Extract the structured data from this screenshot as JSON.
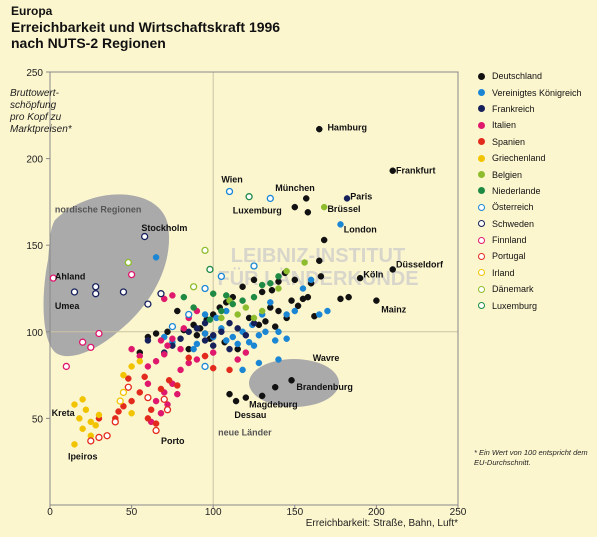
{
  "header": {
    "region": "Europa",
    "title_line1": "Erreichbarkeit und Wirtschaftskraft 1996",
    "title_line2": "nach NUTS-2 Regionen"
  },
  "watermark": "LEIBNIZ-INSTITUT FÜR LÄNDERKUNDE",
  "footnote": "* Ein Wert von 100 entspricht dem EU-Durchschnitt.",
  "colors": {
    "background": "#fcf6cf",
    "grid": "#c9c3a2",
    "blob": "#aaaaaa"
  },
  "chart_data": {
    "type": "scatter",
    "title": "Erreichbarkeit und Wirtschaftskraft 1996 nach NUTS-2 Regionen",
    "xlabel": "Erreichbarkeit: Straße, Bahn, Luft*",
    "ylabel_lines": [
      "Bruttowert-",
      "schöpfung",
      "pro Kopf zu",
      "Marktpreisen*"
    ],
    "xlim": [
      0,
      250
    ],
    "ylim": [
      0,
      250
    ],
    "xticks": [
      0,
      50,
      100,
      150,
      200,
      250
    ],
    "yticks": [
      50,
      100,
      150,
      200,
      250
    ],
    "grid": false,
    "reference_lines": {
      "x": 100,
      "y": 100
    },
    "legend_position": "right",
    "series": [
      {
        "name": "Deutschland",
        "color": "#111111",
        "filled": true,
        "points": [
          [
            165,
            217
          ],
          [
            210,
            193
          ],
          [
            157,
            177
          ],
          [
            150,
            172
          ],
          [
            158,
            169
          ],
          [
            168,
            153
          ],
          [
            165,
            141
          ],
          [
            190,
            131
          ],
          [
            210,
            136
          ],
          [
            200,
            118
          ],
          [
            183,
            120
          ],
          [
            178,
            119
          ],
          [
            166,
            132
          ],
          [
            160,
            128
          ],
          [
            150,
            130
          ],
          [
            144,
            134
          ],
          [
            140,
            129
          ],
          [
            136,
            124
          ],
          [
            130,
            123
          ],
          [
            125,
            130
          ],
          [
            118,
            126
          ],
          [
            112,
            120
          ],
          [
            108,
            117
          ],
          [
            104,
            114
          ],
          [
            100,
            110
          ],
          [
            96,
            107
          ],
          [
            88,
            104
          ],
          [
            82,
            101
          ],
          [
            72,
            100
          ],
          [
            65,
            99
          ],
          [
            60,
            97
          ],
          [
            55,
            88
          ],
          [
            78,
            112
          ],
          [
            85,
            90
          ],
          [
            90,
            98
          ],
          [
            135,
            114
          ],
          [
            140,
            112
          ],
          [
            132,
            106
          ],
          [
            128,
            104
          ],
          [
            122,
            108
          ],
          [
            148,
            118
          ],
          [
            152,
            115
          ],
          [
            145,
            108
          ],
          [
            138,
            103
          ],
          [
            155,
            119
          ],
          [
            162,
            109
          ],
          [
            158,
            120
          ],
          [
            148,
            72
          ],
          [
            138,
            68
          ],
          [
            130,
            63
          ],
          [
            120,
            62
          ],
          [
            114,
            60
          ],
          [
            110,
            64
          ],
          [
            115,
            90
          ],
          [
            107,
            94
          ],
          [
            95,
            99
          ],
          [
            92,
            102
          ],
          [
            98,
            96
          ]
        ]
      },
      {
        "name": "Vereinigtes Königreich",
        "color": "#1a86d4",
        "filled": true,
        "points": [
          [
            178,
            162
          ],
          [
            65,
            143
          ],
          [
            95,
            99
          ],
          [
            100,
            97
          ],
          [
            105,
            102
          ],
          [
            108,
            95
          ],
          [
            112,
            97
          ],
          [
            115,
            93
          ],
          [
            118,
            100
          ],
          [
            122,
            94
          ],
          [
            125,
            92
          ],
          [
            128,
            98
          ],
          [
            130,
            110
          ],
          [
            135,
            117
          ],
          [
            138,
            95
          ],
          [
            140,
            100
          ],
          [
            145,
            96
          ],
          [
            150,
            112
          ],
          [
            155,
            125
          ],
          [
            160,
            130
          ],
          [
            165,
            110
          ],
          [
            170,
            112
          ],
          [
            140,
            84
          ],
          [
            128,
            82
          ],
          [
            118,
            78
          ],
          [
            88,
            90
          ],
          [
            90,
            93
          ],
          [
            75,
            94
          ],
          [
            70,
            97
          ],
          [
            102,
            108
          ],
          [
            95,
            110
          ],
          [
            108,
            112
          ],
          [
            145,
            110
          ],
          [
            132,
            100
          ],
          [
            124,
            104
          ]
        ]
      },
      {
        "name": "Frankreich",
        "color": "#16205a",
        "filled": true,
        "points": [
          [
            182,
            177
          ],
          [
            60,
            95
          ],
          [
            70,
            88
          ],
          [
            75,
            92
          ],
          [
            80,
            96
          ],
          [
            85,
            100
          ],
          [
            90,
            102
          ],
          [
            95,
            95
          ],
          [
            100,
            98
          ],
          [
            105,
            100
          ],
          [
            110,
            105
          ],
          [
            115,
            102
          ],
          [
            120,
            98
          ],
          [
            125,
            105
          ],
          [
            110,
            90
          ],
          [
            100,
            92
          ],
          [
            95,
            105
          ]
        ]
      },
      {
        "name": "Italien",
        "color": "#e0186d",
        "filled": true,
        "points": [
          [
            50,
            90
          ],
          [
            55,
            86
          ],
          [
            60,
            80
          ],
          [
            65,
            83
          ],
          [
            70,
            87
          ],
          [
            72,
            92
          ],
          [
            68,
            95
          ],
          [
            75,
            96
          ],
          [
            80,
            90
          ],
          [
            82,
            102
          ],
          [
            85,
            108
          ],
          [
            90,
            112
          ],
          [
            75,
            121
          ],
          [
            70,
            119
          ],
          [
            60,
            70
          ],
          [
            65,
            60
          ],
          [
            70,
            65
          ],
          [
            75,
            70
          ],
          [
            78,
            64
          ],
          [
            62,
            48
          ],
          [
            68,
            53
          ],
          [
            72,
            58
          ],
          [
            80,
            78
          ],
          [
            85,
            82
          ],
          [
            90,
            84
          ],
          [
            115,
            84
          ],
          [
            120,
            88
          ],
          [
            95,
            86
          ],
          [
            100,
            88
          ]
        ]
      },
      {
        "name": "Spanien",
        "color": "#e32b1d",
        "filled": true,
        "points": [
          [
            40,
            50
          ],
          [
            45,
            57
          ],
          [
            50,
            60
          ],
          [
            55,
            65
          ],
          [
            60,
            50
          ],
          [
            62,
            55
          ],
          [
            65,
            47
          ],
          [
            48,
            73
          ],
          [
            58,
            74
          ],
          [
            68,
            67
          ],
          [
            73,
            72
          ],
          [
            78,
            69
          ],
          [
            100,
            79
          ],
          [
            110,
            78
          ],
          [
            85,
            85
          ],
          [
            95,
            86
          ],
          [
            42,
            54
          ],
          [
            30,
            50
          ]
        ]
      },
      {
        "name": "Griechenland",
        "color": "#f2c400",
        "filled": true,
        "points": [
          [
            15,
            58
          ],
          [
            20,
            61
          ],
          [
            22,
            55
          ],
          [
            25,
            48
          ],
          [
            28,
            46
          ],
          [
            18,
            50
          ],
          [
            30,
            52
          ],
          [
            20,
            44
          ],
          [
            25,
            40
          ],
          [
            15,
            35
          ],
          [
            50,
            53
          ],
          [
            45,
            75
          ],
          [
            50,
            80
          ],
          [
            55,
            83
          ]
        ]
      },
      {
        "name": "Belgien",
        "color": "#8dbd2d",
        "filled": true,
        "points": [
          [
            168,
            172
          ],
          [
            156,
            140
          ],
          [
            145,
            135
          ],
          [
            140,
            125
          ],
          [
            130,
            112
          ],
          [
            120,
            114
          ],
          [
            125,
            108
          ],
          [
            110,
            118
          ],
          [
            115,
            110
          ],
          [
            105,
            108
          ]
        ]
      },
      {
        "name": "Niederlande",
        "color": "#1e8a44",
        "filled": true,
        "points": [
          [
            140,
            132
          ],
          [
            135,
            128
          ],
          [
            130,
            127
          ],
          [
            125,
            120
          ],
          [
            118,
            118
          ],
          [
            112,
            116
          ],
          [
            105,
            112
          ],
          [
            98,
            107
          ],
          [
            108,
            121
          ],
          [
            100,
            122
          ],
          [
            88,
            114
          ],
          [
            82,
            120
          ]
        ]
      },
      {
        "name": "Österreich",
        "color": "#1a86d4",
        "filled": false,
        "points": [
          [
            110,
            181
          ],
          [
            135,
            177
          ],
          [
            125,
            138
          ],
          [
            105,
            132
          ],
          [
            95,
            125
          ],
          [
            85,
            110
          ],
          [
            75,
            103
          ],
          [
            95,
            80
          ]
        ]
      },
      {
        "name": "Schweden",
        "color": "#16205a",
        "filled": false,
        "points": [
          [
            58,
            155
          ],
          [
            45,
            123
          ],
          [
            28,
            126
          ],
          [
            28,
            122
          ],
          [
            60,
            116
          ],
          [
            68,
            122
          ],
          [
            15,
            123
          ]
        ]
      },
      {
        "name": "Finnland",
        "color": "#e0186d",
        "filled": false,
        "points": [
          [
            2,
            131
          ],
          [
            50,
            133
          ],
          [
            20,
            94
          ],
          [
            25,
            91
          ],
          [
            10,
            80
          ],
          [
            30,
            99
          ]
        ]
      },
      {
        "name": "Portugal",
        "color": "#e32b1d",
        "filled": false,
        "points": [
          [
            25,
            37
          ],
          [
            30,
            39
          ],
          [
            35,
            40
          ],
          [
            40,
            48
          ],
          [
            48,
            68
          ],
          [
            65,
            43
          ],
          [
            60,
            62
          ],
          [
            70,
            61
          ],
          [
            72,
            55
          ]
        ]
      },
      {
        "name": "Irland",
        "color": "#f2c400",
        "filled": false,
        "points": [
          [
            45,
            65
          ],
          [
            43,
            60
          ]
        ]
      },
      {
        "name": "Dänemark",
        "color": "#8dbd2d",
        "filled": false,
        "points": [
          [
            95,
            147
          ],
          [
            48,
            140
          ],
          [
            88,
            126
          ]
        ]
      },
      {
        "name": "Luxemburg",
        "color": "#1e8a44",
        "filled": false,
        "points": [
          [
            122,
            178
          ],
          [
            98,
            136
          ]
        ]
      }
    ],
    "annotations": [
      {
        "text": "Hamburg",
        "x": 170,
        "y": 218
      },
      {
        "text": "Frankfurt",
        "x": 212,
        "y": 193
      },
      {
        "text": "Wien",
        "x": 105,
        "y": 188
      },
      {
        "text": "München",
        "x": 138,
        "y": 183
      },
      {
        "text": "Paris",
        "x": 184,
        "y": 178
      },
      {
        "text": "Luxemburg",
        "x": 112,
        "y": 170
      },
      {
        "text": "Brüssel",
        "x": 170,
        "y": 171
      },
      {
        "text": "London",
        "x": 180,
        "y": 159
      },
      {
        "text": "Stockholm",
        "x": 56,
        "y": 160
      },
      {
        "text": "Düsseldorf",
        "x": 212,
        "y": 139
      },
      {
        "text": "Köln",
        "x": 192,
        "y": 133
      },
      {
        "text": "Mainz",
        "x": 203,
        "y": 113
      },
      {
        "text": "Ahland",
        "x": 3,
        "y": 132
      },
      {
        "text": "Umea",
        "x": 3,
        "y": 115
      },
      {
        "text": "Wavre",
        "x": 161,
        "y": 85
      },
      {
        "text": "Brandenburg",
        "x": 151,
        "y": 68
      },
      {
        "text": "Magdeburg",
        "x": 122,
        "y": 58
      },
      {
        "text": "Dessau",
        "x": 113,
        "y": 52
      },
      {
        "text": "Kreta",
        "x": 1,
        "y": 53
      },
      {
        "text": "Ipeiros",
        "x": 11,
        "y": 28
      },
      {
        "text": "Porto",
        "x": 68,
        "y": 37
      }
    ],
    "region_labels": [
      {
        "text": "nordische Regionen",
        "x": 3,
        "y": 169
      },
      {
        "text": "neue Länder",
        "x": 103,
        "y": 40
      }
    ]
  }
}
